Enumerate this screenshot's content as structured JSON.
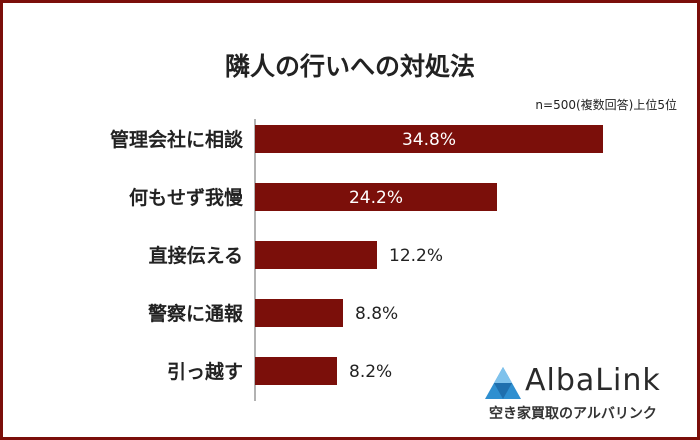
{
  "chart_data": {
    "type": "bar",
    "orientation": "horizontal",
    "title": "隣人の行いへの対処法",
    "note": "n=500(複数回答)上位5位",
    "unit": "%",
    "categories": [
      "管理会社に相談",
      "何もせず我慢",
      "直接伝える",
      "警察に通報",
      "引っ越す"
    ],
    "values": [
      34.8,
      24.2,
      12.2,
      8.8,
      8.2
    ],
    "value_labels": [
      "34.8%",
      "24.2%",
      "12.2%",
      "8.8%",
      "8.2%"
    ],
    "xlim": [
      0,
      35
    ],
    "grid": false,
    "bar_color": "#7b0f0a"
  },
  "brand": {
    "name": "AlbaLink",
    "tagline": "空き家買取のアルバリンク",
    "logo_icon": "triangle-logo-icon"
  }
}
